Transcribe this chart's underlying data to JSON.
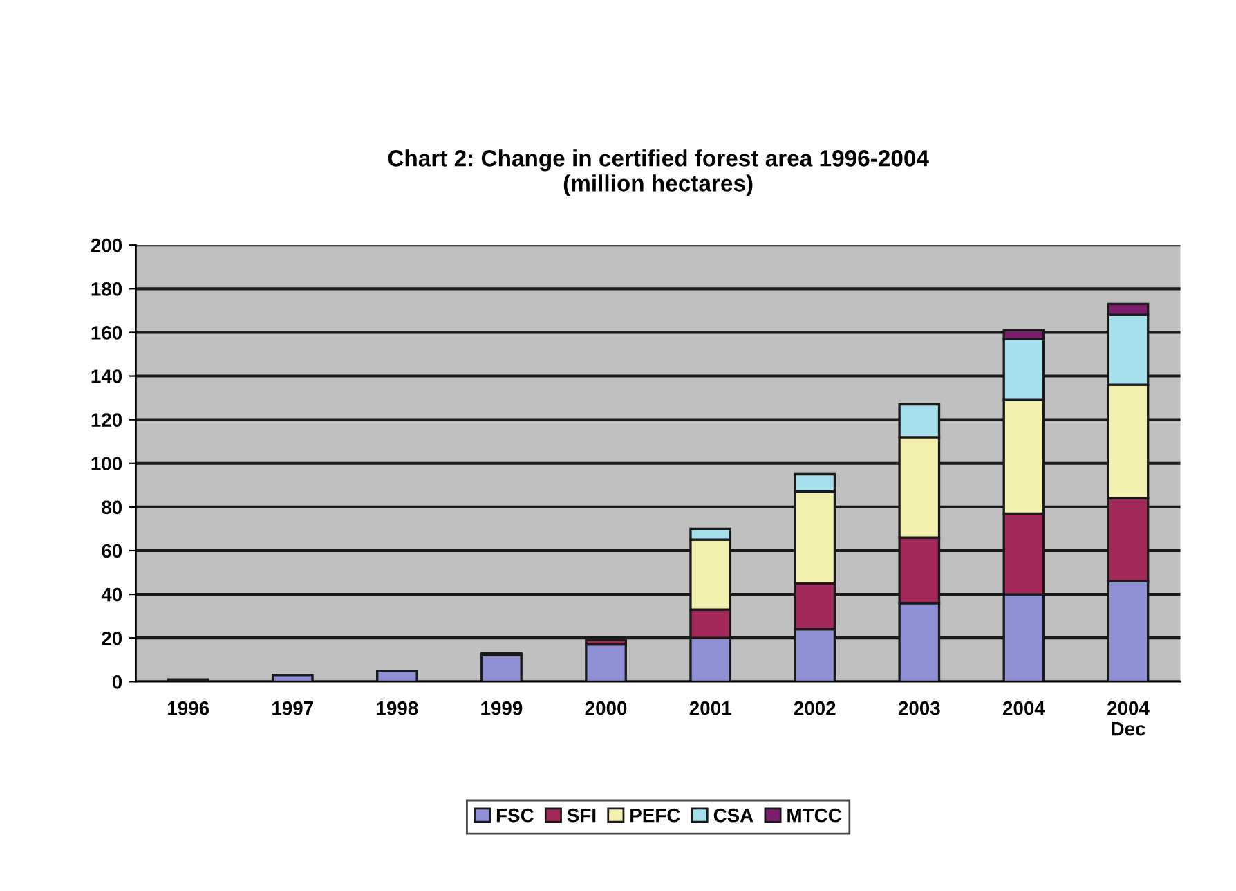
{
  "chart_data": {
    "type": "bar",
    "title": "Chart 2: Change in certified forest area 1996-2004\n(million hectares)",
    "categories": [
      "1996",
      "1997",
      "1998",
      "1999",
      "2000",
      "2001",
      "2002",
      "2003",
      "2004",
      "2004\nDec"
    ],
    "stacked": true,
    "series": [
      {
        "name": "FSC",
        "color": "#8f8fd6",
        "values": [
          1,
          3,
          5,
          12,
          17,
          20,
          24,
          36,
          40,
          46
        ]
      },
      {
        "name": "SFI",
        "color": "#a3295a",
        "values": [
          null,
          null,
          null,
          1,
          2,
          13,
          21,
          30,
          37,
          38
        ]
      },
      {
        "name": "PEFC",
        "color": "#f4f0b0",
        "values": [
          null,
          null,
          null,
          null,
          null,
          32,
          42,
          46,
          52,
          52
        ]
      },
      {
        "name": "CSA",
        "color": "#a6e0ec",
        "values": [
          null,
          null,
          null,
          null,
          null,
          5,
          8,
          15,
          28,
          32
        ]
      },
      {
        "name": "MTCC",
        "color": "#7a1f6e",
        "values": [
          null,
          null,
          null,
          null,
          null,
          null,
          null,
          null,
          4,
          5
        ]
      }
    ],
    "ylim": [
      0,
      200
    ],
    "yticks": [
      0,
      20,
      40,
      60,
      80,
      100,
      120,
      140,
      160,
      180,
      200
    ],
    "grid": "y",
    "legend": "bottom"
  }
}
